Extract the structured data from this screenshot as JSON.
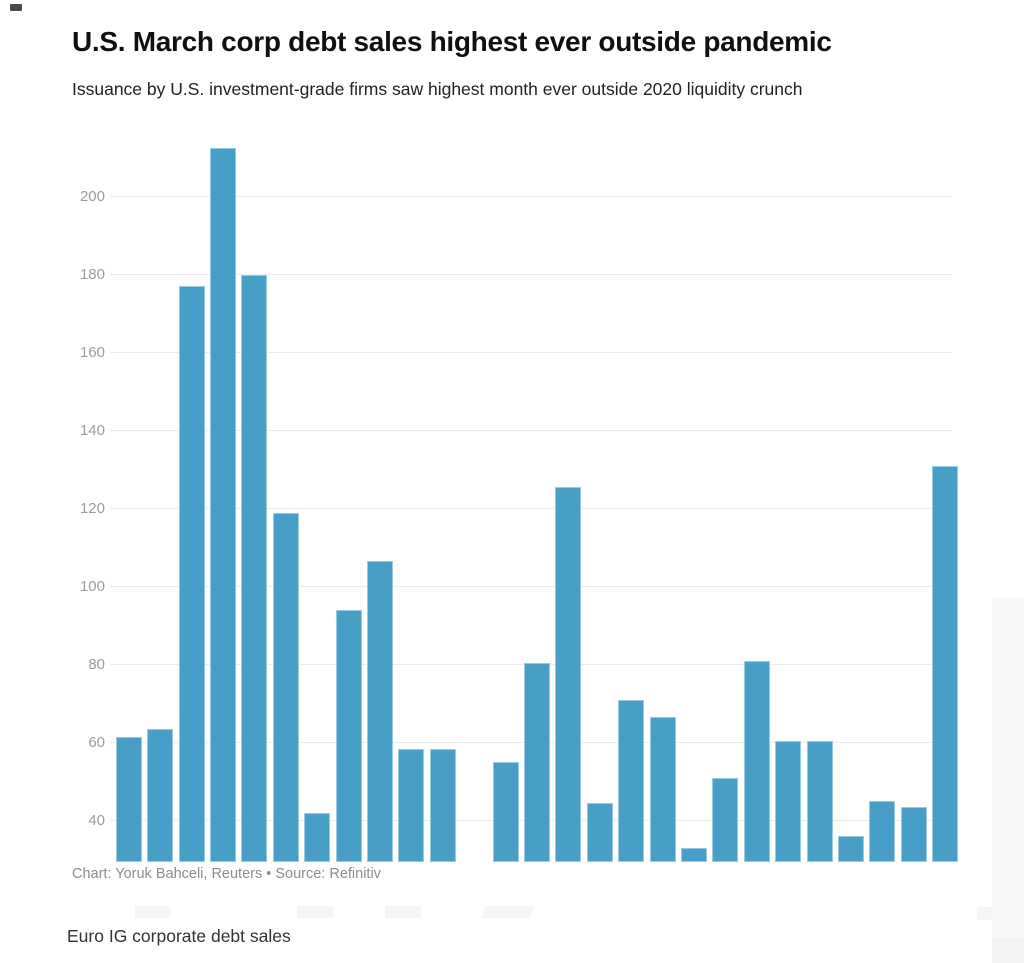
{
  "page": {
    "title": "U.S. March corp debt sales highest ever outside pandemic",
    "subtitle": "Issuance by U.S. investment-grade firms saw highest month ever outside 2020 liquidity crunch",
    "caption": "Chart: Yoruk Bahceli, Reuters • Source: Refinitiv",
    "next_section_heading": "Euro IG corporate debt sales"
  },
  "colors": {
    "bar": "#479fc8",
    "gridline": "#ebebeb",
    "tick_label": "#9c9c9c",
    "title": "#101010",
    "subtitle": "#222222",
    "caption": "#8d8d8d",
    "placeholder": "#f5f5f5"
  },
  "chart_data": {
    "type": "bar",
    "title": "U.S. March corp debt sales highest ever outside pandemic",
    "subtitle": "Issuance by U.S. investment-grade firms saw highest month ever outside 2020 liquidity crunch",
    "source_line": "Chart: Yoruk Bahceli, Reuters • Source: Refinitiv",
    "xlabel": "",
    "ylabel": "",
    "yticks": [
      40,
      60,
      80,
      100,
      120,
      140,
      160,
      180,
      200
    ],
    "ylim_visible": [
      29.4,
      217.1
    ],
    "grid": "horizontal",
    "legend": "none",
    "x_axis_labels_visible": false,
    "values": [
      61.5,
      63.5,
      177,
      212.5,
      180,
      119,
      42,
      94,
      106.5,
      58.5,
      58.5,
      null,
      55,
      80.5,
      125.5,
      44.5,
      71,
      66.5,
      33,
      51,
      81,
      60.5,
      60.5,
      36,
      45,
      43.5,
      131
    ]
  }
}
